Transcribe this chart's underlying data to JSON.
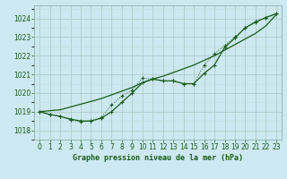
{
  "title": "Graphe pression niveau de la mer (hPa)",
  "background_color": "#cce8f0",
  "grid_major_color": "#b0ccc8",
  "grid_minor_color": "#c8dedd",
  "line_color": "#1a5c1a",
  "xlim": [
    -0.5,
    23.5
  ],
  "ylim": [
    1017.5,
    1024.7
  ],
  "yticks": [
    1018,
    1019,
    1020,
    1021,
    1022,
    1023,
    1024
  ],
  "xticks": [
    0,
    1,
    2,
    3,
    4,
    5,
    6,
    7,
    8,
    9,
    10,
    11,
    12,
    13,
    14,
    15,
    16,
    17,
    18,
    19,
    20,
    21,
    22,
    23
  ],
  "series": {
    "line_straight": [
      1019.0,
      1019.05,
      1019.1,
      1019.25,
      1019.4,
      1019.55,
      1019.7,
      1019.9,
      1020.1,
      1020.3,
      1020.55,
      1020.75,
      1020.9,
      1021.1,
      1021.3,
      1021.5,
      1021.75,
      1022.0,
      1022.3,
      1022.6,
      1022.9,
      1023.2,
      1023.6,
      1024.2
    ],
    "line_dip_solid": [
      1019.0,
      1018.85,
      1018.75,
      1018.6,
      1018.5,
      1018.5,
      1018.65,
      1019.0,
      1019.5,
      1020.0,
      1020.55,
      1020.75,
      1020.65,
      1020.65,
      1020.5,
      1020.5,
      1021.05,
      1021.5,
      1022.45,
      1022.95,
      1023.5,
      1023.8,
      1024.05,
      1024.25
    ],
    "line_dotted": [
      1019.0,
      1018.85,
      1018.75,
      1018.55,
      1018.45,
      1018.5,
      1018.7,
      1019.35,
      1019.85,
      1020.15,
      1020.8,
      1020.75,
      1020.65,
      1020.65,
      1020.5,
      1020.5,
      1021.5,
      1022.1,
      1022.55,
      1023.0,
      1023.5,
      1023.85,
      1024.05,
      1024.25
    ]
  }
}
